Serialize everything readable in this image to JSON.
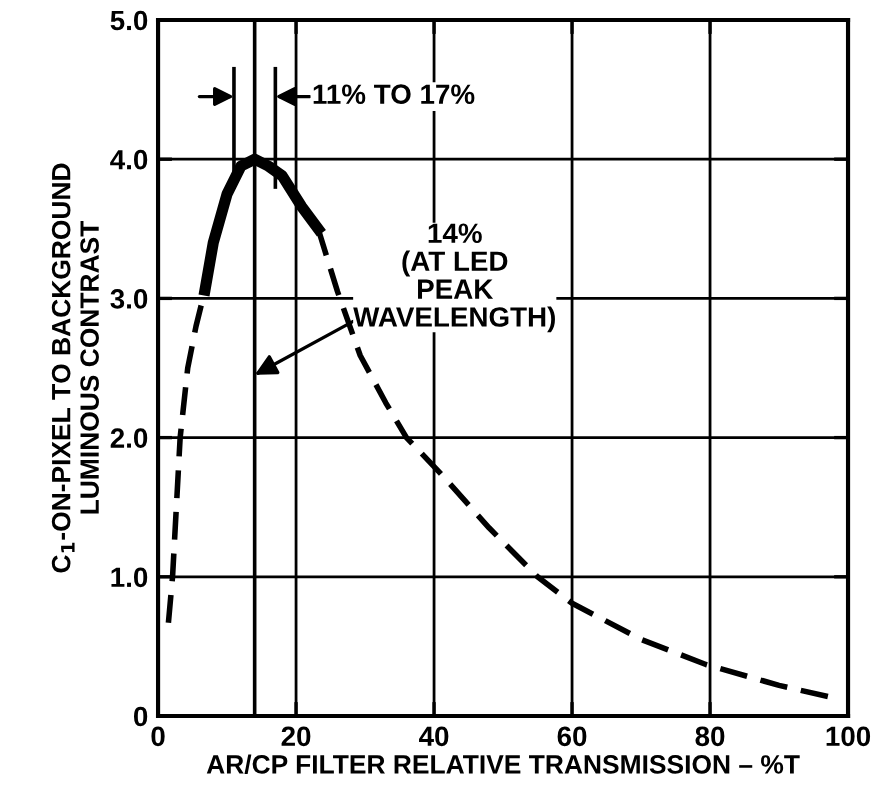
{
  "chart_data": {
    "type": "line",
    "xlabel": "AR/CP FILTER RELATIVE TRANSMISSION – %T",
    "ylabel": "C$_{1}$-ON-PIXEL TO BACKGROUND\nLUMINOUS CONTRAST",
    "series": [
      {
        "color": "#000000",
        "line_style": "dashed",
        "x": [
          1.5,
          2.1,
          3.2,
          4.3,
          5.5,
          6.8,
          14,
          23.2,
          26,
          29.3,
          33,
          36,
          41,
          48,
          55,
          60,
          70,
          79.4,
          90,
          98.8
        ],
        "values": [
          0.67,
          1.0,
          2.0,
          2.5,
          2.8,
          3.06,
          null,
          3.5,
          3.05,
          2.59,
          2.25,
          2.0,
          1.74,
          1.35,
          1.0,
          0.81,
          0.55,
          0.37,
          0.22,
          0.12
        ]
      },
      {
        "color": "#000000",
        "line_style": "solid",
        "x": [
          6.8,
          8,
          10,
          12,
          14,
          16,
          18,
          20.8,
          23.2
        ],
        "values": [
          3.06,
          3.4,
          3.75,
          3.95,
          4.0,
          3.95,
          3.88,
          3.66,
          3.5
        ]
      }
    ],
    "ref_lines": [
      {
        "axis": "x",
        "value": 11
      },
      {
        "axis": "x",
        "value": 14
      },
      {
        "axis": "x",
        "value": 17
      }
    ],
    "annotations": [
      {
        "text": "11% TO 17%",
        "x": 17,
        "y": 4.45
      },
      {
        "text": "14%\n(AT LED\nPEAK\nWAVELENGTH)",
        "x": 14,
        "y": 2.45
      }
    ],
    "xlim": [
      0,
      100
    ],
    "ylim": [
      0,
      5
    ],
    "xticks": [
      0,
      20,
      40,
      60,
      80,
      100
    ],
    "yticks": [
      0,
      {
        "value": 1,
        "label": "1.0"
      },
      {
        "value": 2,
        "label": "2.0"
      },
      {
        "value": 3,
        "label": "3.0"
      },
      {
        "value": 4,
        "label": "4.0"
      },
      {
        "value": 5,
        "label": "5.0"
      }
    ],
    "grid": true,
    "legend": false
  }
}
